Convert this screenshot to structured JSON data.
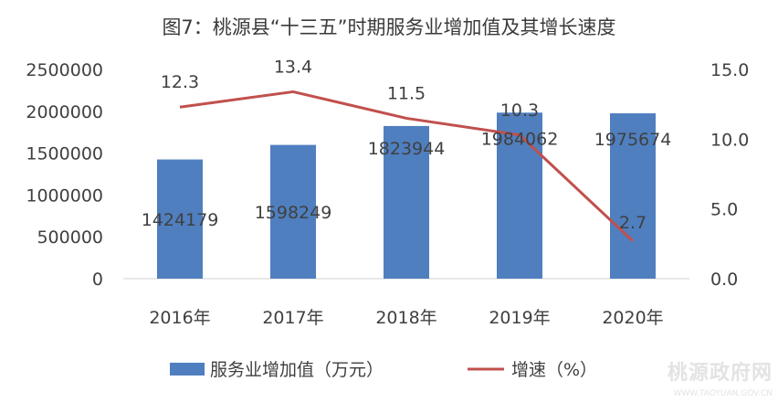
{
  "chart_data": {
    "type": "bar",
    "title": "图7：桃源县“十三五”时期服务业增加值及其增长速度",
    "categories": [
      "2016年",
      "2017年",
      "2018年",
      "2019年",
      "2020年"
    ],
    "series": [
      {
        "name": "服务业增加值（万元）",
        "type": "bar",
        "axis": "left",
        "color": "#4f7fbf",
        "values": [
          1424179,
          1598249,
          1823944,
          1984062,
          1975674
        ]
      },
      {
        "name": "增速（%）",
        "type": "line",
        "axis": "right",
        "color": "#c0504d",
        "values": [
          12.3,
          13.4,
          11.5,
          10.3,
          2.7
        ]
      }
    ],
    "y_left": {
      "ylim": [
        0,
        2500000
      ],
      "ticks": [
        "0",
        "500000",
        "1000000",
        "1500000",
        "2000000",
        "2500000"
      ]
    },
    "y_right": {
      "ylim": [
        0,
        15
      ],
      "ticks": [
        "0.0",
        "5.0",
        "10.0",
        "15.0"
      ]
    },
    "bar_labels": [
      "1424179",
      "1598249",
      "1823944",
      "1984062",
      "1975674"
    ],
    "line_labels": [
      "12.3",
      "13.4",
      "11.5",
      "10.3",
      "2.7"
    ],
    "grid": false,
    "legend_position": "bottom"
  },
  "watermark": {
    "line1": "桃源政府网",
    "line2": "WWW.TAOYUAN.GOV.CN"
  }
}
